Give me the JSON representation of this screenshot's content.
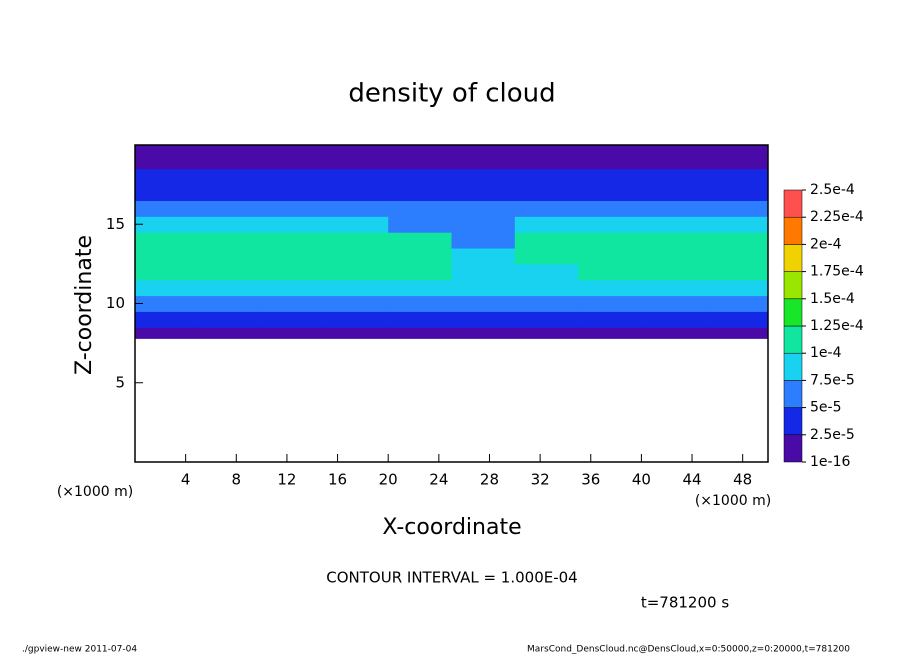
{
  "chart_data": {
    "type": "heatmap",
    "title": "density of cloud",
    "x_label": "X-coordinate",
    "y_label": "Z-coordinate",
    "x_unit": "(×1000 m)",
    "y_unit": "(×1000 m)",
    "xlim": [
      0,
      50
    ],
    "ylim": [
      0,
      20
    ],
    "xticks": [
      4,
      8,
      12,
      16,
      20,
      24,
      28,
      32,
      36,
      40,
      44,
      48
    ],
    "yticks": [
      5,
      10,
      15
    ],
    "xbins": [
      0,
      5,
      10,
      15,
      20,
      25,
      30,
      35,
      40,
      45,
      50
    ],
    "ybins": [
      7.8,
      8.5,
      9.5,
      10.5,
      11.5,
      12.5,
      13.5,
      14.5,
      15.5,
      16.5,
      17.5,
      18.5,
      20
    ],
    "values": [
      [
        1e-05,
        1e-05,
        1e-05,
        1e-05,
        1e-05,
        1e-05,
        1e-05,
        1e-05,
        1e-05,
        1e-05
      ],
      [
        3e-05,
        3e-05,
        3e-05,
        3e-05,
        3e-05,
        3e-05,
        3.5e-05,
        3e-05,
        3e-05,
        3e-05
      ],
      [
        6e-05,
        6e-05,
        6e-05,
        6e-05,
        6e-05,
        6e-05,
        6e-05,
        6e-05,
        6e-05,
        6e-05
      ],
      [
        9e-05,
        9e-05,
        9e-05,
        9e-05,
        9e-05,
        8e-05,
        8e-05,
        9e-05,
        9e-05,
        9e-05
      ],
      [
        0.00011,
        0.00011,
        0.00011,
        0.00011,
        0.00011,
        9e-05,
        9.5e-05,
        0.00011,
        0.00011,
        0.00011
      ],
      [
        0.000115,
        0.000115,
        0.000115,
        0.000115,
        0.000115,
        8.5e-05,
        0.0001,
        0.000115,
        0.000115,
        0.000115
      ],
      [
        0.00011,
        0.00011,
        0.00011,
        0.00011,
        0.00011,
        7e-05,
        0.0001,
        0.00011,
        0.00011,
        0.00011
      ],
      [
        9e-05,
        9e-05,
        9e-05,
        9e-05,
        6e-05,
        6.5e-05,
        9e-05,
        9e-05,
        9e-05,
        9e-05
      ],
      [
        5e-05,
        5e-05,
        5e-05,
        5e-05,
        5e-05,
        5e-05,
        5e-05,
        5e-05,
        5e-05,
        5e-05
      ],
      [
        4e-05,
        4e-05,
        4e-05,
        4e-05,
        4e-05,
        4e-05,
        4e-05,
        4e-05,
        4e-05,
        4e-05
      ],
      [
        3e-05,
        3e-05,
        3e-05,
        3e-05,
        3e-05,
        3e-05,
        3e-05,
        3e-05,
        3e-05,
        3e-05
      ],
      [
        1.5e-05,
        1.5e-05,
        1.5e-05,
        1.5e-05,
        1.5e-05,
        1.5e-05,
        1.5e-05,
        1.5e-05,
        1.5e-05,
        1.5e-05
      ]
    ],
    "colorbar": {
      "ticks": [
        {
          "value": 1e-16,
          "label": "1e-16"
        },
        {
          "value": 2.5e-05,
          "label": "2.5e-5"
        },
        {
          "value": 5e-05,
          "label": "5e-5"
        },
        {
          "value": 7.5e-05,
          "label": "7.5e-5"
        },
        {
          "value": 0.0001,
          "label": "1e-4"
        },
        {
          "value": 0.000125,
          "label": "1.25e-4"
        },
        {
          "value": 0.00015,
          "label": "1.5e-4"
        },
        {
          "value": 0.000175,
          "label": "1.75e-4"
        },
        {
          "value": 0.0002,
          "label": "2e-4"
        },
        {
          "value": 0.000225,
          "label": "2.25e-4"
        },
        {
          "value": 0.00025,
          "label": "2.5e-4"
        }
      ],
      "colors": [
        "#4a0aa8",
        "#1428e6",
        "#2d7dff",
        "#18d2f0",
        "#10e6a0",
        "#18e628",
        "#9be600",
        "#f0d200",
        "#ff7800",
        "#ff5050"
      ]
    },
    "contour_note": "CONTOUR INTERVAL = 1.000E-04",
    "time_label": "t=781200 s",
    "footer_left": "./gpview-new   2011-07-04",
    "footer_right": "MarsCond_DensCloud.nc@DensCloud,x=0:50000,z=0:20000,t=781200"
  }
}
